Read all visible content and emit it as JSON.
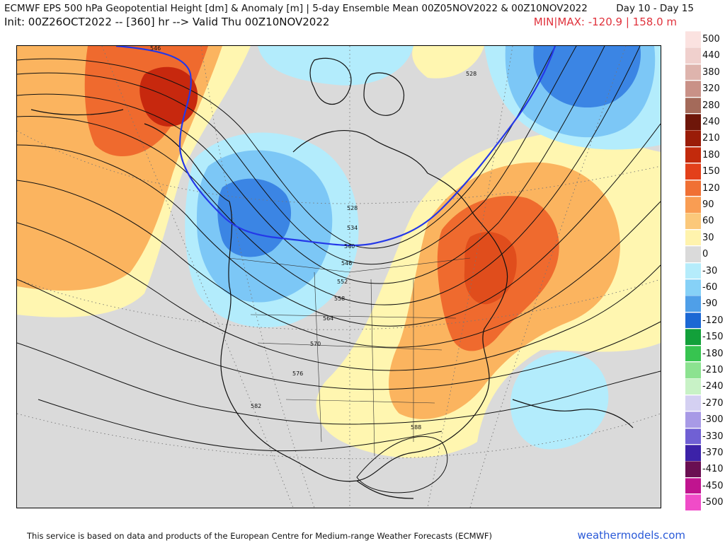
{
  "header": {
    "title": "ECMWF EPS 500 hPa Geopotential Height [dm] & Anomaly [m] | 5-day Ensemble Mean 00Z05NOV2022 & 00Z10NOV2022",
    "day_range": "Day 10 - Day 15",
    "init_line": "Init: 00Z26OCT2022 -- [360] hr --> Valid Thu 00Z10NOV2022",
    "minmax": "MIN|MAX: -120.9 | 158.0 m",
    "minmax_color": "#e0323c"
  },
  "map": {
    "contour_labels": [
      "546",
      "528",
      "528",
      "534",
      "540",
      "546",
      "552",
      "558",
      "564",
      "570",
      "576",
      "582",
      "588"
    ],
    "colors": {
      "positive_light": "#fff6b0",
      "positive_mid": "#fbb45f",
      "positive_strong": "#ef6a2e",
      "positive_max": "#c7280e",
      "negative_light": "#b3ecfc",
      "negative_mid": "#7cc7f6",
      "negative_strong": "#3b85e4",
      "neutral": "#dadada",
      "reference_contour": "#2438e8"
    }
  },
  "scale": {
    "items": [
      {
        "label": "500",
        "color": "#fbe2e0"
      },
      {
        "label": "440",
        "color": "#f0d0cd"
      },
      {
        "label": "380",
        "color": "#deb4ad"
      },
      {
        "label": "320",
        "color": "#c99187"
      },
      {
        "label": "280",
        "color": "#a46a5a"
      },
      {
        "label": "240",
        "color": "#6e1609"
      },
      {
        "label": "210",
        "color": "#9a1c08"
      },
      {
        "label": "180",
        "color": "#c22a0c"
      },
      {
        "label": "150",
        "color": "#e3401a"
      },
      {
        "label": "120",
        "color": "#f07034"
      },
      {
        "label": "90",
        "color": "#f99d53"
      },
      {
        "label": "60",
        "color": "#fbc87a"
      },
      {
        "label": "30",
        "color": "#fff3ad"
      },
      {
        "label": "0",
        "color": "#dadada"
      },
      {
        "label": "-30",
        "color": "#b5ecfb"
      },
      {
        "label": "-60",
        "color": "#86d1f7"
      },
      {
        "label": "-90",
        "color": "#4f9fe8"
      },
      {
        "label": "-120",
        "color": "#1c68d4"
      },
      {
        "label": "-150",
        "color": "#12a03a"
      },
      {
        "label": "-180",
        "color": "#37c450"
      },
      {
        "label": "-210",
        "color": "#8ce290"
      },
      {
        "label": "-240",
        "color": "#c8f2c6"
      },
      {
        "label": "-270",
        "color": "#d4d0f2"
      },
      {
        "label": "-300",
        "color": "#a89ae6"
      },
      {
        "label": "-330",
        "color": "#7060d4"
      },
      {
        "label": "-370",
        "color": "#3c22a8"
      },
      {
        "label": "-410",
        "color": "#6a0f52"
      },
      {
        "label": "-450",
        "color": "#c0148f"
      },
      {
        "label": "-500",
        "color": "#f04cc8"
      }
    ]
  },
  "footer": {
    "credit": "This service is based on data and products of the European Centre for Medium-range Weather Forecasts (ECMWF)",
    "site": "weathermodels.com",
    "site_color": "#2a5ad8"
  }
}
